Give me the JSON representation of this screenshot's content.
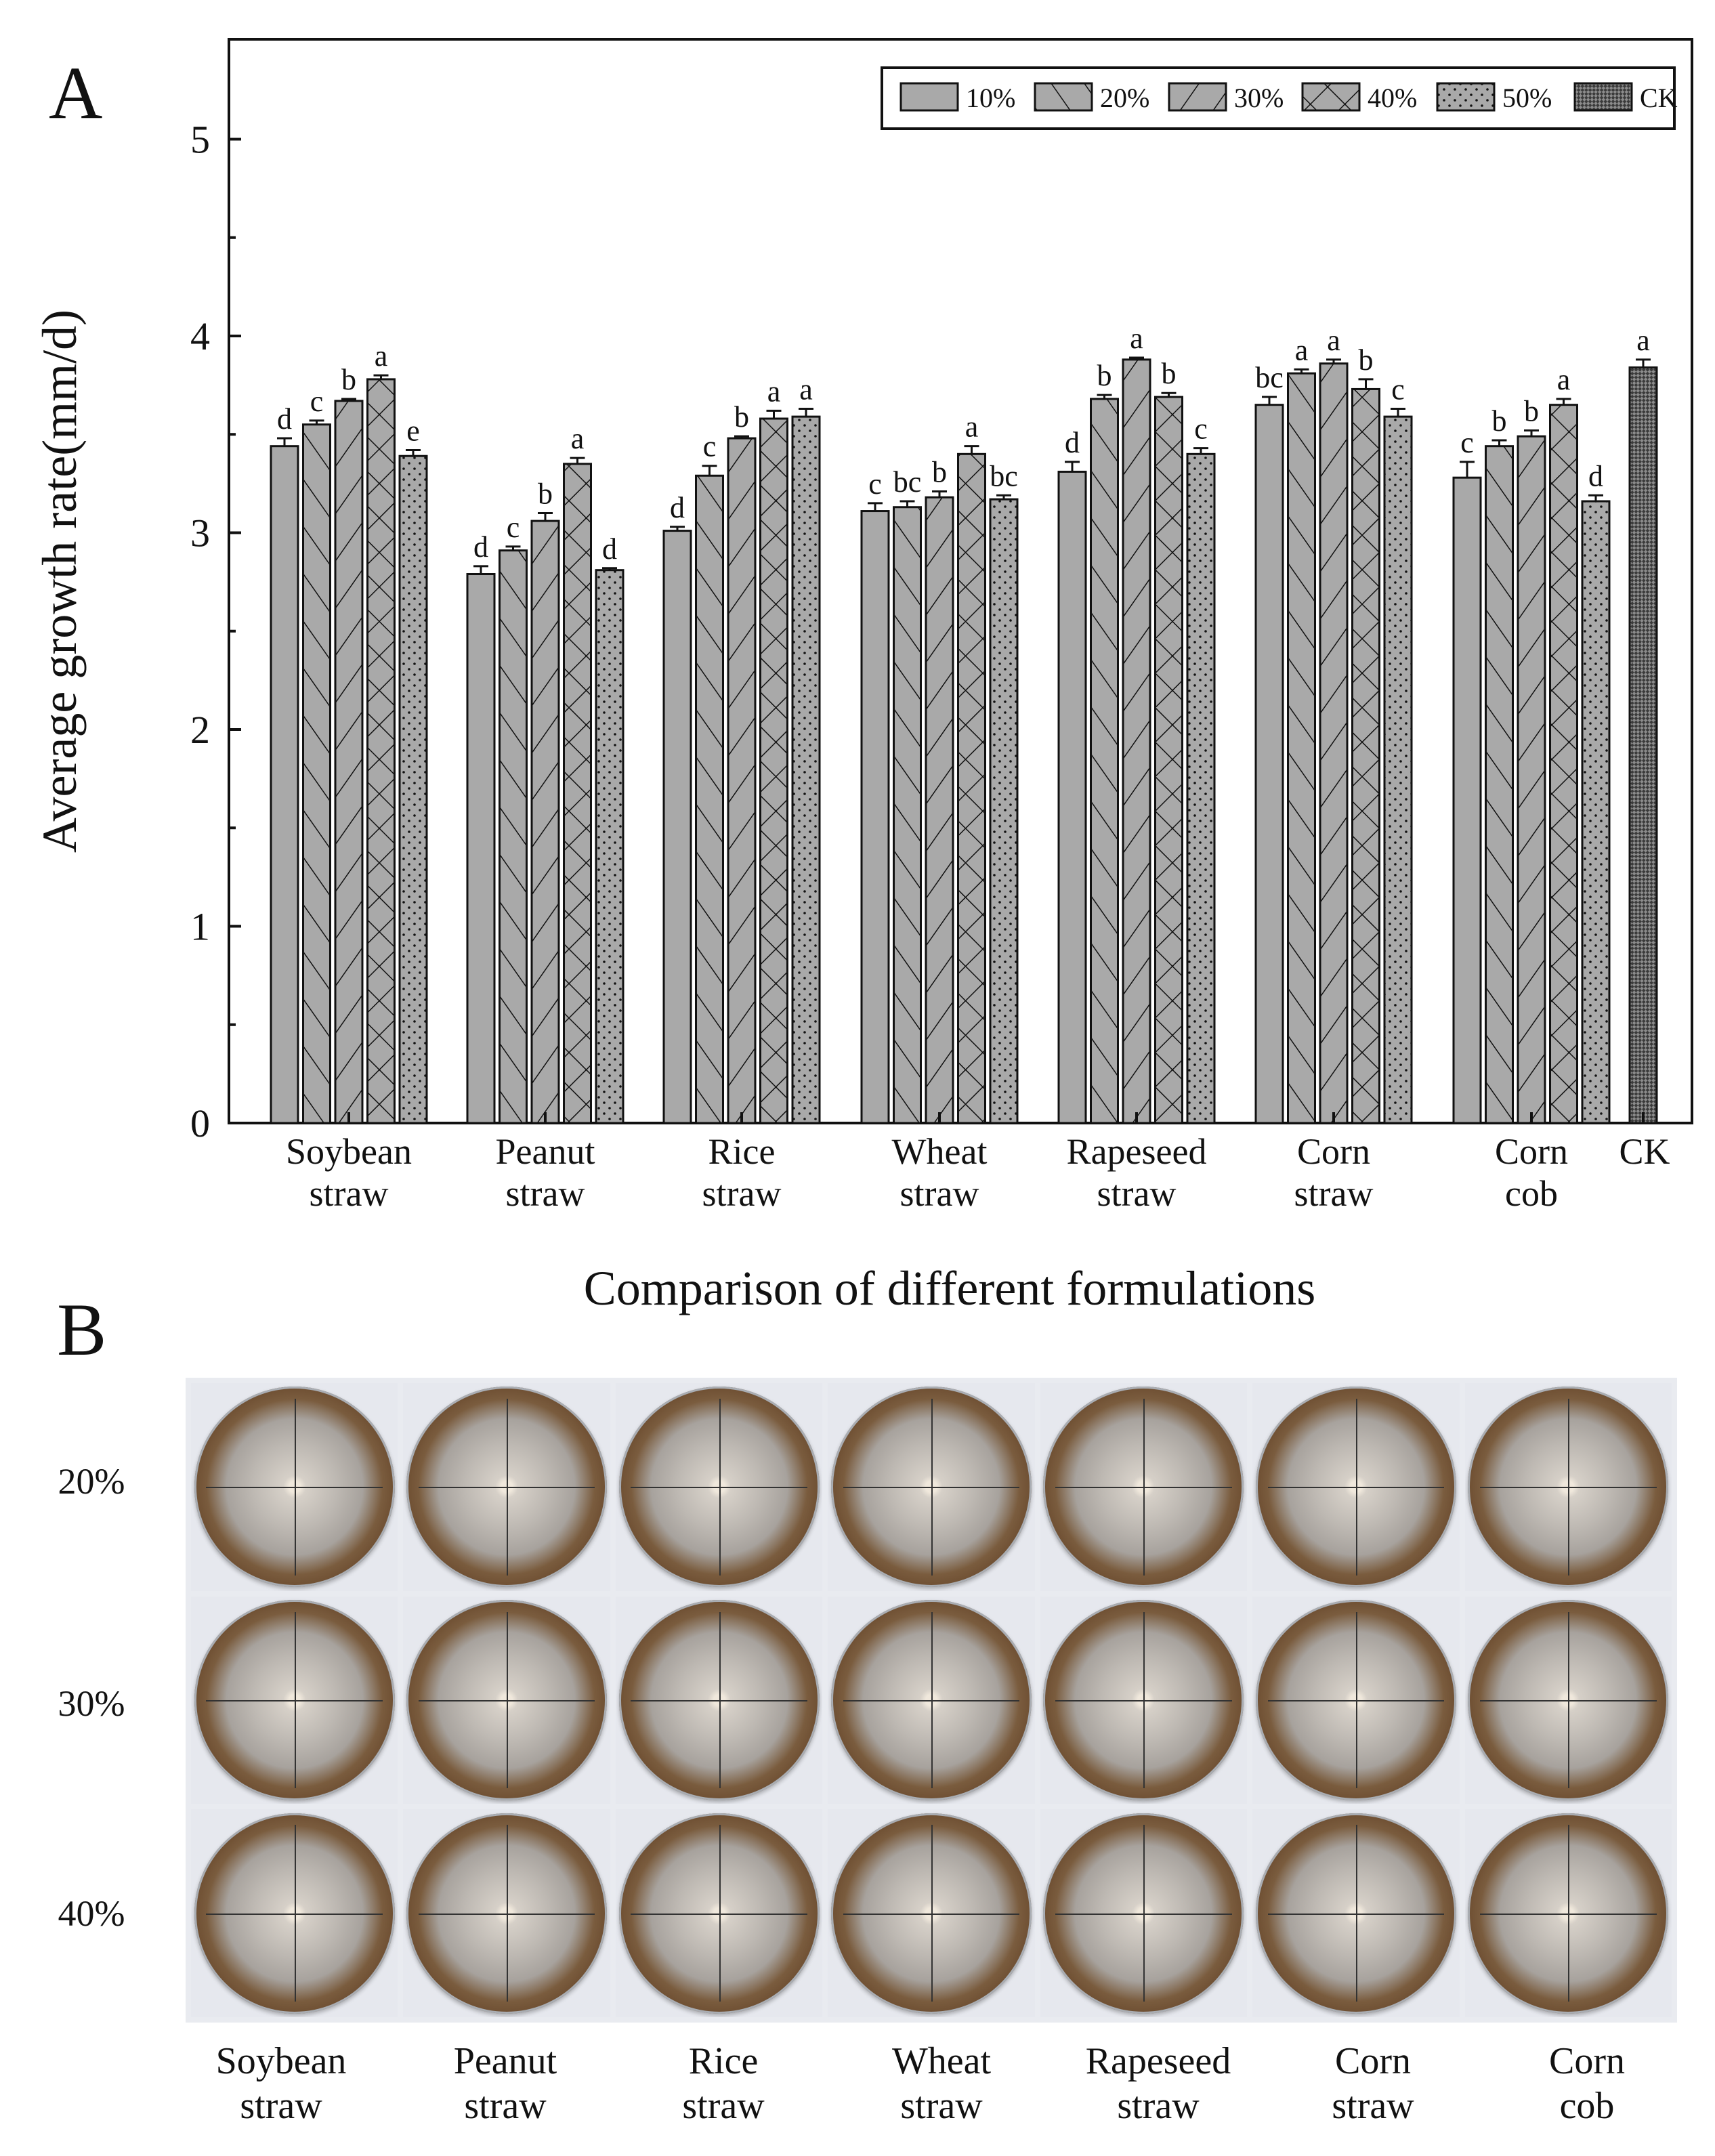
{
  "chart_data": {
    "type": "bar",
    "panel_label": "A",
    "ylabel": "Average growth rate(mm/d)",
    "xlabel": "Comparison of different formulations",
    "ylim": [
      0,
      5.5
    ],
    "yticks": [
      "0",
      "1",
      "2",
      "3",
      "4",
      "5"
    ],
    "legend_position": "top-right",
    "legend": [
      {
        "name": "10%",
        "pattern": "solid"
      },
      {
        "name": "20%",
        "pattern": "hatch-forward"
      },
      {
        "name": "30%",
        "pattern": "hatch-back"
      },
      {
        "name": "40%",
        "pattern": "crosshatch"
      },
      {
        "name": "50%",
        "pattern": "dots"
      },
      {
        "name": "CK",
        "pattern": "fine-checker"
      }
    ],
    "categories": [
      {
        "lines": [
          "Soybean",
          "straw"
        ]
      },
      {
        "lines": [
          "Peanut",
          "straw"
        ]
      },
      {
        "lines": [
          "Rice",
          "straw"
        ]
      },
      {
        "lines": [
          "Wheat",
          "straw"
        ]
      },
      {
        "lines": [
          "Rapeseed",
          "straw"
        ]
      },
      {
        "lines": [
          "Corn",
          "straw"
        ]
      },
      {
        "lines": [
          "Corn",
          "cob"
        ]
      }
    ],
    "series": [
      {
        "name": "10%",
        "values": [
          3.44,
          2.79,
          3.01,
          3.11,
          3.31,
          3.65,
          3.28
        ],
        "errors": [
          0.04,
          0.04,
          0.02,
          0.04,
          0.05,
          0.04,
          0.08
        ],
        "letters": [
          "d",
          "d",
          "d",
          "c",
          "d",
          "bc",
          "c"
        ]
      },
      {
        "name": "20%",
        "values": [
          3.55,
          2.91,
          3.29,
          3.13,
          3.68,
          3.81,
          3.44
        ],
        "errors": [
          0.02,
          0.02,
          0.05,
          0.03,
          0.02,
          0.02,
          0.03
        ],
        "letters": [
          "c",
          "c",
          "c",
          "bc",
          "b",
          "a",
          "b"
        ]
      },
      {
        "name": "30%",
        "values": [
          3.67,
          3.06,
          3.48,
          3.18,
          3.88,
          3.86,
          3.49
        ],
        "errors": [
          0.01,
          0.04,
          0.01,
          0.03,
          0.01,
          0.02,
          0.03
        ],
        "letters": [
          "b",
          "b",
          "b",
          "b",
          "a",
          "a",
          "b"
        ]
      },
      {
        "name": "40%",
        "values": [
          3.78,
          3.35,
          3.58,
          3.4,
          3.69,
          3.73,
          3.65
        ],
        "errors": [
          0.02,
          0.03,
          0.04,
          0.04,
          0.02,
          0.05,
          0.03
        ],
        "letters": [
          "a",
          "a",
          "a",
          "a",
          "b",
          "b",
          "a"
        ]
      },
      {
        "name": "50%",
        "values": [
          3.39,
          2.81,
          3.59,
          3.17,
          3.4,
          3.59,
          3.16
        ],
        "errors": [
          0.03,
          0.01,
          0.04,
          0.02,
          0.03,
          0.04,
          0.03
        ],
        "letters": [
          "e",
          "d",
          "a",
          "bc",
          "c",
          "c",
          "d"
        ]
      }
    ],
    "ck": {
      "label": "CK",
      "value": 3.84,
      "error": 0.04,
      "letter": "a"
    }
  },
  "photos": {
    "panel_label": "B",
    "rows": [
      "20%",
      "30%",
      "40%"
    ],
    "columns": [
      {
        "line1": "Soybean",
        "line2": "straw"
      },
      {
        "line1": "Peanut",
        "line2": "straw"
      },
      {
        "line1": "Rice",
        "line2": "straw"
      },
      {
        "line1": "Wheat",
        "line2": "straw"
      },
      {
        "line1": "Rapeseed",
        "line2": "straw"
      },
      {
        "line1": "Corn",
        "line2": "straw"
      },
      {
        "line1": "Corn",
        "line2": "cob"
      }
    ]
  }
}
